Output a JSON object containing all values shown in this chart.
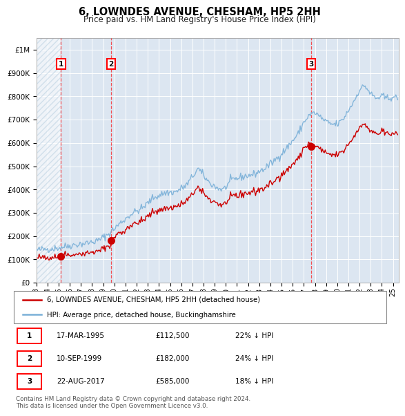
{
  "title": "6, LOWNDES AVENUE, CHESHAM, HP5 2HH",
  "subtitle": "Price paid vs. HM Land Registry's House Price Index (HPI)",
  "hpi_color": "#7ab0d8",
  "price_color": "#cc0000",
  "plot_bg_color": "#dce6f1",
  "sale_dates_num": [
    1995.21,
    1999.69,
    2017.64
  ],
  "sale_prices": [
    112500,
    182000,
    585000
  ],
  "sale_labels": [
    "1",
    "2",
    "3"
  ],
  "table_rows": [
    [
      "1",
      "17-MAR-1995",
      "£112,500",
      "22% ↓ HPI"
    ],
    [
      "2",
      "10-SEP-1999",
      "£182,000",
      "24% ↓ HPI"
    ],
    [
      "3",
      "22-AUG-2017",
      "£585,000",
      "18% ↓ HPI"
    ]
  ],
  "legend_entries": [
    "6, LOWNDES AVENUE, CHESHAM, HP5 2HH (detached house)",
    "HPI: Average price, detached house, Buckinghamshire"
  ],
  "footer": "Contains HM Land Registry data © Crown copyright and database right 2024.\nThis data is licensed under the Open Government Licence v3.0.",
  "ylim": [
    0,
    1050000
  ],
  "xlim_start": 1993.0,
  "xlim_end": 2025.5,
  "yticks": [
    0,
    100000,
    200000,
    300000,
    400000,
    500000,
    600000,
    700000,
    800000,
    900000,
    1000000
  ],
  "ytick_labels": [
    "£0",
    "£100K",
    "£200K",
    "£300K",
    "£400K",
    "£500K",
    "£600K",
    "£700K",
    "£800K",
    "£900K",
    "£1M"
  ],
  "hpi_key_points_t": [
    1993.0,
    1995.0,
    1996.0,
    1997.5,
    1998.5,
    1999.5,
    2000.5,
    2001.5,
    2002.5,
    2003.5,
    2004.5,
    2005.5,
    2006.5,
    2007.5,
    2008.5,
    2009.3,
    2009.8,
    2010.5,
    2011.5,
    2012.5,
    2013.5,
    2014.5,
    2015.5,
    2016.0,
    2016.5,
    2017.0,
    2017.5,
    2018.0,
    2018.5,
    2019.0,
    2019.5,
    2020.0,
    2020.5,
    2021.0,
    2021.5,
    2022.0,
    2022.5,
    2023.0,
    2023.5,
    2024.0,
    2024.5,
    2025.0,
    2025.3
  ],
  "hpi_key_points_v": [
    140000,
    150000,
    160000,
    170000,
    180000,
    210000,
    255000,
    295000,
    320000,
    365000,
    385000,
    390000,
    420000,
    490000,
    430000,
    405000,
    400000,
    440000,
    455000,
    465000,
    490000,
    530000,
    580000,
    610000,
    640000,
    690000,
    720000,
    730000,
    710000,
    690000,
    680000,
    680000,
    700000,
    740000,
    780000,
    830000,
    845000,
    810000,
    790000,
    800000,
    790000,
    800000,
    790000
  ],
  "hpi_noise_std": 8000,
  "price_noise_std": 4000,
  "random_seed": 42
}
